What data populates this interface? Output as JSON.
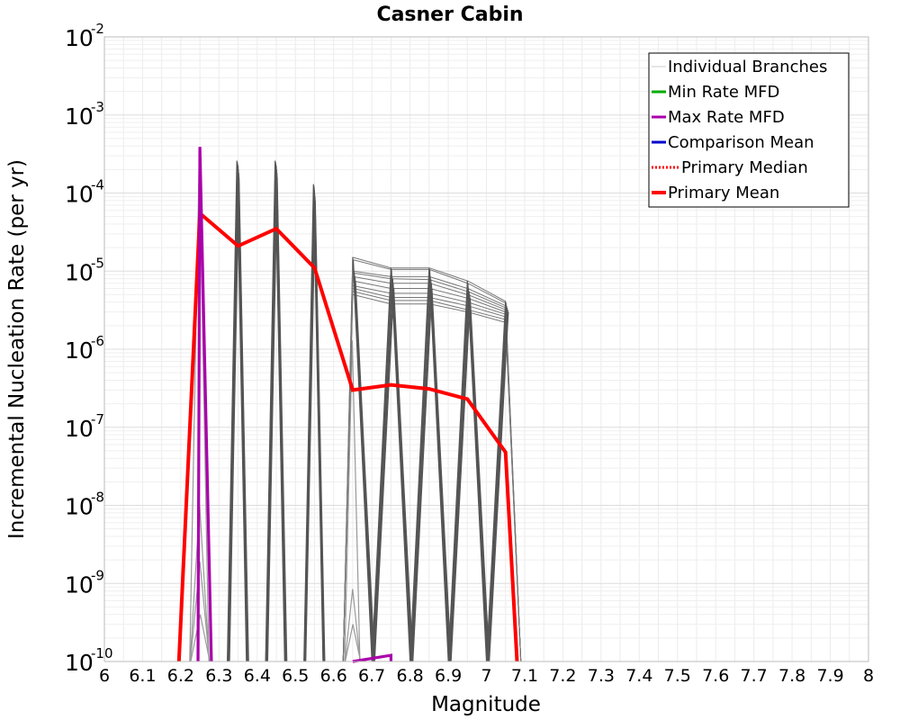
{
  "chart_data": {
    "type": "line",
    "title": "Casner Cabin",
    "xlabel": "Magnitude",
    "ylabel": "Incremental Nucleation Rate (per yr)",
    "xlim": [
      6.0,
      8.0
    ],
    "ylim": [
      1e-10,
      0.01
    ],
    "yscale": "log",
    "grid": true,
    "legend_position": "top-right",
    "x_ticks": [
      "6",
      "6.1",
      "6.2",
      "6.3",
      "6.4",
      "6.5",
      "6.6",
      "6.7",
      "6.8",
      "6.9",
      "7",
      "7.1",
      "7.2",
      "7.3",
      "7.4",
      "7.5",
      "7.6",
      "7.7",
      "7.8",
      "7.9",
      "8"
    ],
    "x_tick_values": [
      6.0,
      6.1,
      6.2,
      6.3,
      6.4,
      6.5,
      6.6,
      6.7,
      6.8,
      6.9,
      7.0,
      7.1,
      7.2,
      7.3,
      7.4,
      7.5,
      7.6,
      7.7,
      7.8,
      7.9,
      8.0
    ],
    "y_ticks": [
      {
        "base": "10",
        "exp": "-10",
        "exponent": -10
      },
      {
        "base": "10",
        "exp": "-9",
        "exponent": -9
      },
      {
        "base": "10",
        "exp": "-8",
        "exponent": -8
      },
      {
        "base": "10",
        "exp": "-7",
        "exponent": -7
      },
      {
        "base": "10",
        "exp": "-6",
        "exponent": -6
      },
      {
        "base": "10",
        "exp": "-5",
        "exponent": -5
      },
      {
        "base": "10",
        "exp": "-4",
        "exponent": -4
      },
      {
        "base": "10",
        "exp": "-3",
        "exponent": -3
      },
      {
        "base": "10",
        "exp": "-2",
        "exponent": -2
      }
    ],
    "legend": [
      {
        "label": "Individual Branches",
        "color": "#cccccc",
        "style": "thin"
      },
      {
        "label": "Min Rate MFD",
        "color": "#00aa00",
        "style": "solid"
      },
      {
        "label": "Max Rate MFD",
        "color": "#aa00aa",
        "style": "solid"
      },
      {
        "label": "Comparison Mean",
        "color": "#0000cc",
        "style": "solid"
      },
      {
        "label": "Primary Median",
        "color": "#ff0000",
        "style": "dotted"
      },
      {
        "label": "Primary Mean",
        "color": "#ff0000",
        "style": "thick"
      }
    ],
    "series": [
      {
        "name": "Primary Mean",
        "color": "#ff0000",
        "x": [
          6.195,
          6.25,
          6.35,
          6.45,
          6.55,
          6.65,
          6.75,
          6.85,
          6.95,
          7.05,
          7.08
        ],
        "y": [
          1e-10,
          5.5e-05,
          2.1e-05,
          3.5e-05,
          1.1e-05,
          3e-07,
          3.5e-07,
          3.1e-07,
          2.3e-07,
          4.8e-08,
          1e-10
        ]
      },
      {
        "name": "Max Rate MFD",
        "color": "#aa00aa",
        "segments": [
          {
            "x": [
              6.245,
              6.25,
              6.28
            ],
            "y": [
              1e-10,
              0.00039,
              1e-10
            ]
          },
          {
            "x": [
              6.65,
              6.65,
              6.75,
              6.75
            ],
            "y": [
              1e-10,
              1e-10,
              1.2e-10,
              1e-10
            ]
          }
        ]
      }
    ],
    "branch_spikes": [
      {
        "center": 6.25,
        "peaks": [
          0.00032,
          1e-08,
          1.9e-09,
          4e-10
        ],
        "width": 0.025,
        "color": "#999999"
      },
      {
        "center": 6.35,
        "peaks": [
          0.00026,
          0.00025,
          0.00024,
          0.00023,
          0.00022,
          0.0002,
          0.00018,
          0.00016
        ],
        "width": 0.025,
        "color": "#555555"
      },
      {
        "center": 6.45,
        "peaks": [
          0.00026,
          0.00025,
          0.00024,
          0.00023,
          0.00022,
          0.0002,
          0.00018,
          0.00016
        ],
        "width": 0.025,
        "color": "#555555"
      },
      {
        "center": 6.55,
        "peaks": [
          0.00013,
          0.000125,
          0.00012,
          0.00011,
          0.0001,
          9e-05,
          8e-05
        ],
        "width": 0.025,
        "color": "#555555"
      },
      {
        "center": 6.65,
        "peaks": [
          1.3e-06,
          8.5e-10,
          3e-10
        ],
        "width": 0.02,
        "color": "#999999"
      }
    ],
    "branch_plateau_series": [
      [
        1.5e-05,
        1.1e-05,
        1.1e-05,
        7.5e-06,
        4.1e-06
      ],
      [
        1.4e-05,
        1.05e-05,
        1.05e-05,
        7e-06,
        3.9e-06
      ],
      [
        1e-05,
        8.5e-06,
        8.5e-06,
        6e-06,
        3.6e-06
      ],
      [
        9.5e-06,
        8e-06,
        7.8e-06,
        5.5e-06,
        3.4e-06
      ],
      [
        8.5e-06,
        7e-06,
        7e-06,
        5e-06,
        3.2e-06
      ],
      [
        7.5e-06,
        6e-06,
        6e-06,
        4.5e-06,
        3e-06
      ],
      [
        6.5e-06,
        5.2e-06,
        5.2e-06,
        4e-06,
        2.8e-06
      ],
      [
        6e-06,
        4.6e-06,
        4.6e-06,
        3.6e-06,
        2.6e-06
      ],
      [
        5.5e-06,
        4.2e-06,
        4.2e-06,
        3.2e-06,
        2.4e-06
      ],
      [
        5e-06,
        3.8e-06,
        3.8e-06,
        3e-06,
        2.2e-06
      ]
    ],
    "branch_plateau_x": [
      6.65,
      6.75,
      6.85,
      6.95,
      7.05
    ],
    "branch_plateau_end": 7.09
  }
}
